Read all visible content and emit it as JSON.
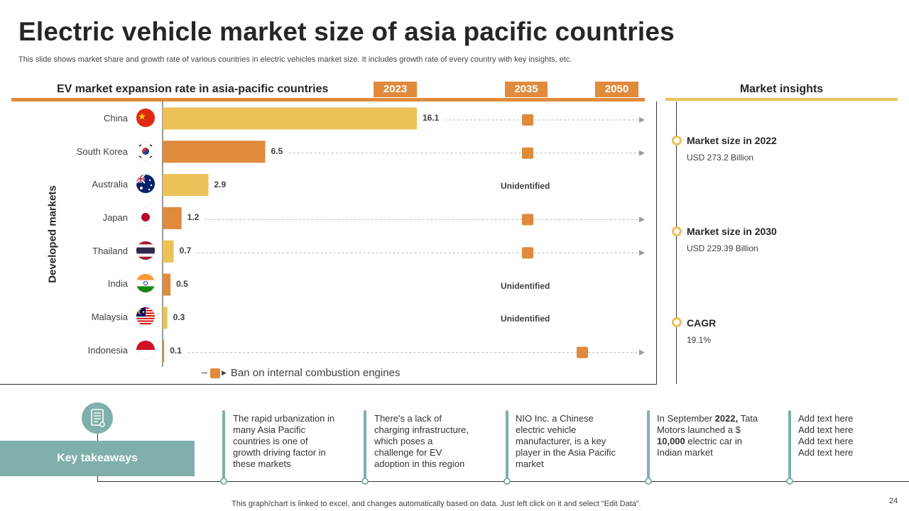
{
  "page": {
    "title": "Electric vehicle market size of asia pacific countries",
    "subtitle": "This slide shows market share and growth rate of various countries in electric vehicles market size. It includes growth rate of every country with key insights, etc.",
    "footer": "This graph/chart is linked to excel, and changes automatically based on data. Just left click on it and select “Edit Data”.",
    "page_number": "24"
  },
  "chart_data": {
    "type": "bar",
    "orientation": "horizontal",
    "title": "EV market expansion rate in asia-pacific countries",
    "ylabel": "Developed markets",
    "year_markers": [
      "2023",
      "2035",
      "2050"
    ],
    "categories": [
      "China",
      "South Korea",
      "Australia",
      "Japan",
      "Thailand",
      "India",
      "Malaysia",
      "Indonesia"
    ],
    "values": [
      16.1,
      6.5,
      2.9,
      1.2,
      0.7,
      0.5,
      0.3,
      0.1
    ],
    "value_labels": [
      "16.1",
      "6.5",
      "2.9",
      "1.2",
      "0.7",
      "0.5",
      "0.3",
      "0.1"
    ],
    "bar_colors": [
      "#ecc257",
      "#e08a3c",
      "#ecc257",
      "#e08a3c",
      "#ecc257",
      "#e08a3c",
      "#ecc257",
      "#e08a3c"
    ],
    "ban_year": [
      "2035",
      "2035",
      "Unidentified",
      "2035",
      "2035",
      "Unidentified",
      "Unidentified",
      "2050"
    ],
    "unidentified_label": "Unidentified",
    "legend": "Ban on internal combustion engines",
    "xlim": [
      0,
      16.1
    ]
  },
  "insights": {
    "title": "Market insights",
    "items": [
      {
        "heading": "Market size in 2022",
        "value": "USD 273.2 Billion"
      },
      {
        "heading": "Market size in 2030",
        "value": "USD 229.39 Billion"
      },
      {
        "heading": "CAGR",
        "value": "19.1%"
      }
    ]
  },
  "takeaways": {
    "label": "Key takeaways",
    "items": [
      {
        "lines": [
          "The rapid urbanization in",
          "many Asia Pacific",
          "countries is one of",
          "growth driving factor in",
          "these markets"
        ]
      },
      {
        "lines": [
          "There's a lack of",
          "charging infrastructure,",
          "which poses a",
          "challenge for EV",
          "adoption in this region"
        ]
      },
      {
        "lines": [
          "NIO Inc. a Chinese",
          "electric vehicle",
          "manufacturer, is a key",
          "player in the Asia Pacific",
          "market"
        ]
      },
      {
        "lines": [
          "In September 2022, Tata",
          "Motors launched a $",
          "10,000 electric car in",
          "Indian market"
        ]
      },
      {
        "lines": [
          "Add text here",
          "Add text here",
          "Add text here",
          "Add text here"
        ]
      }
    ]
  },
  "colors": {
    "accent_orange": "#e08a3c",
    "accent_yellow": "#ecc257",
    "teal": "#7fb0ab"
  },
  "icons": {
    "takeaway_icon": "document-list-icon",
    "flags": [
      "china-flag-icon",
      "south-korea-flag-icon",
      "australia-flag-icon",
      "japan-flag-icon",
      "thailand-flag-icon",
      "india-flag-icon",
      "malaysia-flag-icon",
      "indonesia-flag-icon"
    ]
  }
}
